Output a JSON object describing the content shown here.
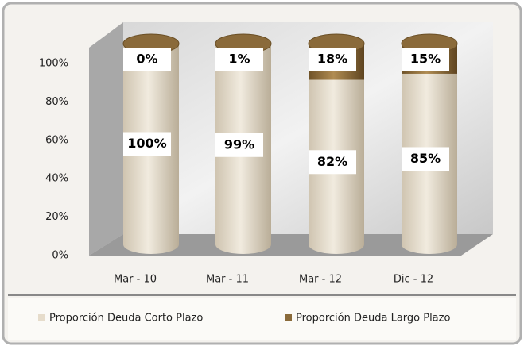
{
  "chart_data": {
    "type": "bar",
    "stacked": true,
    "categories": [
      "Mar - 10",
      "Mar - 11",
      "Mar - 12",
      "Dic - 12"
    ],
    "series": [
      {
        "name": "Proporción Deuda Corto Plazo",
        "color": "#e6dccb",
        "values": [
          100,
          99,
          82,
          85
        ],
        "value_labels": [
          "100%",
          "99%",
          "82%",
          "85%"
        ]
      },
      {
        "name": "Proporción Deuda Largo Plazo",
        "color": "#8a6a3a",
        "values": [
          0,
          1,
          18,
          15
        ],
        "value_labels": [
          "0%",
          "1%",
          "18%",
          "15%"
        ]
      }
    ],
    "ylim": [
      0,
      100
    ],
    "yticks": [
      {
        "value": 0,
        "label": "0%"
      },
      {
        "value": 20,
        "label": "20%"
      },
      {
        "value": 40,
        "label": "40%"
      },
      {
        "value": 60,
        "label": "60%"
      },
      {
        "value": 80,
        "label": "80%"
      },
      {
        "value": 100,
        "label": "100%"
      }
    ],
    "legend": "bottom"
  }
}
